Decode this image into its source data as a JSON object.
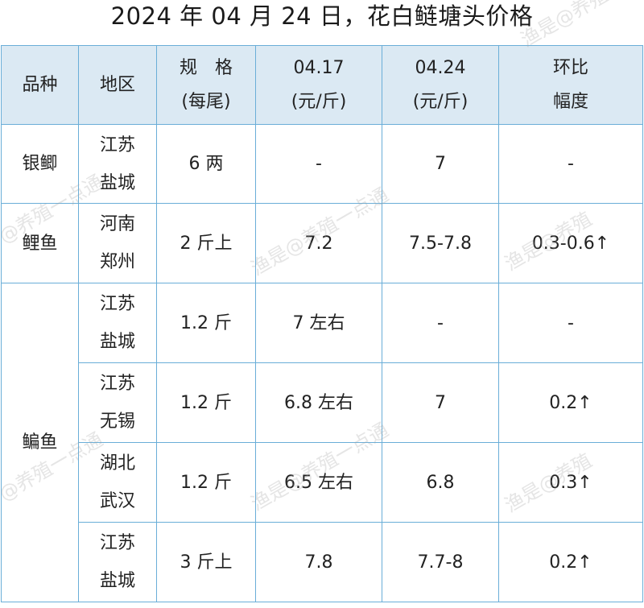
{
  "title": "2024 年 04 月 24 日，花白鲢塘头价格",
  "headers": {
    "species": "品种",
    "region": "地区",
    "spec_line1": "规　格",
    "spec_line2": "(每尾)",
    "date1_line1": "04.17",
    "date1_line2": "(元/斤)",
    "date2_line1": "04.24",
    "date2_line2": "(元/斤)",
    "change_line1": "环比",
    "change_line2": "幅度"
  },
  "rows": [
    {
      "species": "银鲫",
      "region_line1": "江苏",
      "region_line2": "盐城",
      "spec": "6 两",
      "price_0417": "-",
      "price_0424": "7",
      "change": "-"
    },
    {
      "species": "鲤鱼",
      "region_line1": "河南",
      "region_line2": "郑州",
      "spec": "2 斤上",
      "price_0417": "7.2",
      "price_0424": "7.5-7.8",
      "change": "0.3-0.6↑"
    },
    {
      "species": "鳊鱼",
      "region_line1": "江苏",
      "region_line2": "盐城",
      "spec": "1.2 斤",
      "price_0417": "7 左右",
      "price_0424": "-",
      "change": "-"
    },
    {
      "species": "",
      "region_line1": "江苏",
      "region_line2": "无锡",
      "spec": "1.2 斤",
      "price_0417": "6.8 左右",
      "price_0424": "7",
      "change": "0.2↑"
    },
    {
      "species": "",
      "region_line1": "湖北",
      "region_line2": "武汉",
      "spec": "1.2 斤",
      "price_0417": "6.5 左右",
      "price_0424": "6.8",
      "change": "0.3↑"
    },
    {
      "species": "",
      "region_line1": "江苏",
      "region_line2": "盐城",
      "spec": "3 斤上",
      "price_0417": "7.8",
      "price_0424": "7.7-8",
      "change": "0.2↑"
    }
  ],
  "watermarks": {
    "a": "渔是@养殖一点通",
    "b": "@养殖一点通",
    "c": "渔是@养殖"
  },
  "colors": {
    "border": "#6aaed8",
    "header_bg": "#dbe9f3"
  }
}
